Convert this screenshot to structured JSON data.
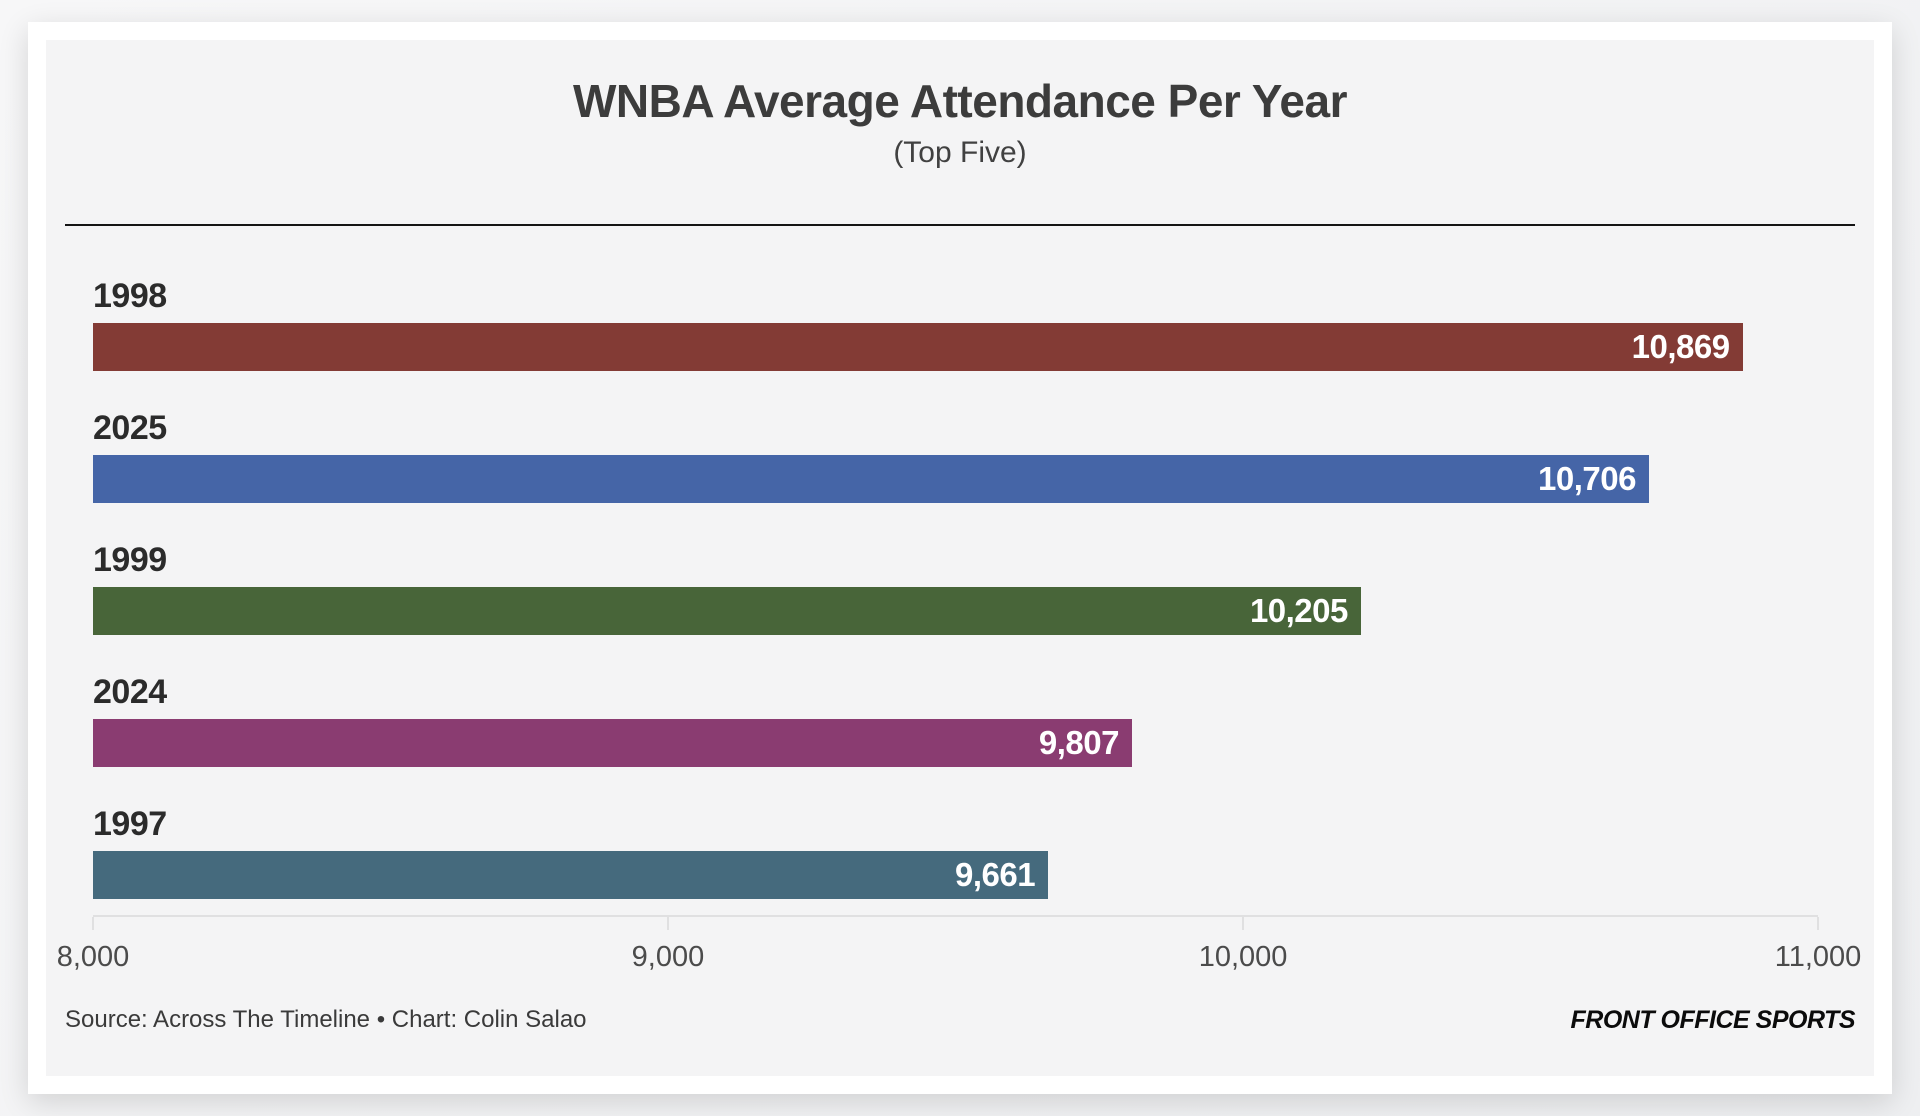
{
  "chart_data": {
    "type": "bar",
    "orientation": "horizontal",
    "title": "WNBA Average Attendance Per Year",
    "subtitle": "(Top Five)",
    "categories": [
      "1998",
      "2025",
      "1999",
      "2024",
      "1997"
    ],
    "values": [
      10869,
      10706,
      10205,
      9807,
      9661
    ],
    "value_labels": [
      "10,869",
      "10,706",
      "10,205",
      "9,807",
      "9,661"
    ],
    "bar_colors": [
      "#833B35",
      "#4565A7",
      "#486539",
      "#8A3C71",
      "#456A7D"
    ],
    "xlim": [
      8000,
      11000
    ],
    "xticks": [
      8000,
      9000,
      10000,
      11000
    ],
    "xtick_labels": [
      "8,000",
      "9,000",
      "10,000",
      "11,000"
    ],
    "grid": false,
    "legend": null,
    "value_label_position": "inside-end",
    "value_label_color": "#ffffff"
  },
  "footer": {
    "source": "Source: Across The Timeline • Chart: Colin Salao",
    "brand": "FRONT OFFICE SPORTS"
  }
}
